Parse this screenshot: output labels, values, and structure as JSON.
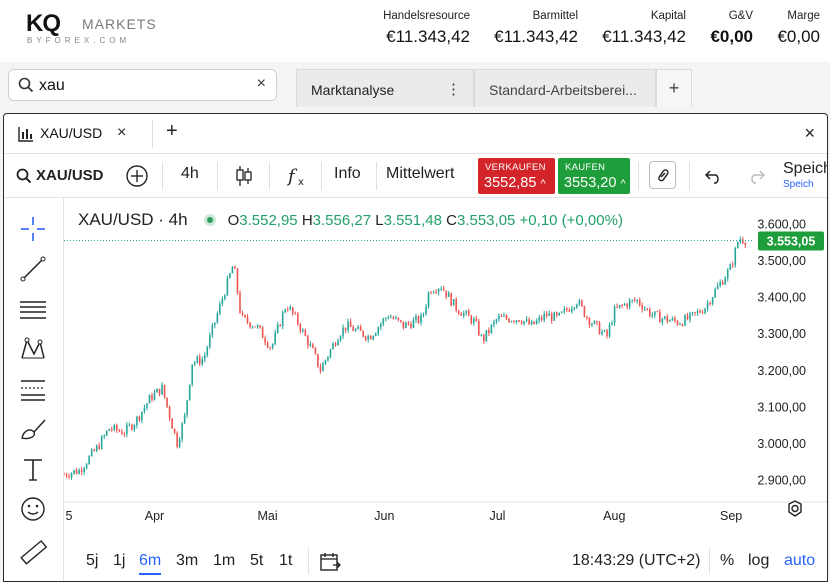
{
  "brand": {
    "logo_main": "KQ",
    "logo_markets": "MARKETS",
    "logo_sub": "BYFOREX.COM"
  },
  "metrics": [
    {
      "label": "Handelsresource",
      "value": "€11.343,42",
      "bold": false
    },
    {
      "label": "Barmittel",
      "value": "€11.343,42",
      "bold": false
    },
    {
      "label": "Kapital",
      "value": "€11.343,42",
      "bold": false
    },
    {
      "label": "G&V",
      "value": "€0,00",
      "bold": true
    },
    {
      "label": "Marge",
      "value": "€0,00",
      "bold": false
    }
  ],
  "search": {
    "value": "xau",
    "clear": "×"
  },
  "workspace_tabs": [
    {
      "label": "Marktanalyse",
      "menu": "⋮"
    },
    {
      "label": "Standard-Arbeitsberei..."
    }
  ],
  "add_tab": "+",
  "window": {
    "tab_label": "XAU/USD",
    "tab_close": "×",
    "add": "+",
    "close": "×"
  },
  "toolbar": {
    "symbol": "XAU/USD",
    "interval": "4h",
    "info": "Info",
    "indicator": "Mittelwert",
    "sell_label": "VERKAUFEN",
    "sell_price": "3552,85",
    "buy_label": "KAUFEN",
    "buy_price": "3553,20",
    "save_label": "Speich",
    "save_sub": "Speich"
  },
  "legend": {
    "symbol": "XAU/USD · 4h",
    "o_label": "O",
    "o": "3.552,95",
    "h_label": "H",
    "h": "3.556,27",
    "l_label": "L",
    "l": "3.551,48",
    "c_label": "C",
    "c": "3.553,05",
    "change": "+0,10 (+0,00%)"
  },
  "price_tag": "3.553,05",
  "bottom": {
    "ranges": [
      "5j",
      "1j",
      "6m",
      "3m",
      "1m",
      "5t",
      "1t"
    ],
    "selected_range": "6m",
    "time": "18:43:29 (UTC+2)",
    "percent": "%",
    "log": "log",
    "auto": "auto"
  },
  "colors": {
    "up": "#26a69a",
    "down": "#ef5350",
    "sell": "#d3242a",
    "buy": "#1e9e3a",
    "accent": "#2962ff"
  },
  "chart_data": {
    "type": "candlestick",
    "symbol": "XAU/USD",
    "interval": "4h",
    "ylim": [
      2850,
      3620
    ],
    "y_ticks": [
      2900,
      3000,
      3100,
      3200,
      3300,
      3400,
      3500,
      3600
    ],
    "y_tick_labels": [
      "2.900,00",
      "3.000,00",
      "3.100,00",
      "3.200,00",
      "3.300,00",
      "3.400,00",
      "3.500,00",
      "3.600,00"
    ],
    "x_tick_labels": [
      "5",
      "Apr",
      "Mai",
      "Jun",
      "Jul",
      "Aug",
      "Sep"
    ],
    "close_path": [
      [
        "03-08",
        2915
      ],
      [
        "03-12",
        2925
      ],
      [
        "03-17",
        2990
      ],
      [
        "03-20",
        3040
      ],
      [
        "03-24",
        3030
      ],
      [
        "03-27",
        3060
      ],
      [
        "03-31",
        3125
      ],
      [
        "04-03",
        3150
      ],
      [
        "04-07",
        3000
      ],
      [
        "04-09",
        3070
      ],
      [
        "04-11",
        3220
      ],
      [
        "04-14",
        3230
      ],
      [
        "04-17",
        3330
      ],
      [
        "04-22",
        3490
      ],
      [
        "04-24",
        3340
      ],
      [
        "04-28",
        3320
      ],
      [
        "05-02",
        3260
      ],
      [
        "05-06",
        3380
      ],
      [
        "05-09",
        3330
      ],
      [
        "05-13",
        3250
      ],
      [
        "05-15",
        3200
      ],
      [
        "05-20",
        3300
      ],
      [
        "05-22",
        3320
      ],
      [
        "05-28",
        3290
      ],
      [
        "06-02",
        3350
      ],
      [
        "06-06",
        3320
      ],
      [
        "06-11",
        3340
      ],
      [
        "06-13",
        3420
      ],
      [
        "06-16",
        3430
      ],
      [
        "06-20",
        3370
      ],
      [
        "06-25",
        3330
      ],
      [
        "06-27",
        3280
      ],
      [
        "07-01",
        3340
      ],
      [
        "07-07",
        3340
      ],
      [
        "07-10",
        3320
      ],
      [
        "07-14",
        3350
      ],
      [
        "07-17",
        3340
      ],
      [
        "07-22",
        3390
      ],
      [
        "07-25",
        3340
      ],
      [
        "07-30",
        3290
      ],
      [
        "08-01",
        3360
      ],
      [
        "08-04",
        3380
      ],
      [
        "08-07",
        3390
      ],
      [
        "08-11",
        3350
      ],
      [
        "08-14",
        3340
      ],
      [
        "08-18",
        3330
      ],
      [
        "08-21",
        3340
      ],
      [
        "08-25",
        3370
      ],
      [
        "08-28",
        3420
      ],
      [
        "09-01",
        3480
      ],
      [
        "09-03",
        3560
      ],
      [
        "09-05",
        3553
      ]
    ],
    "last_price": 3553.05
  }
}
